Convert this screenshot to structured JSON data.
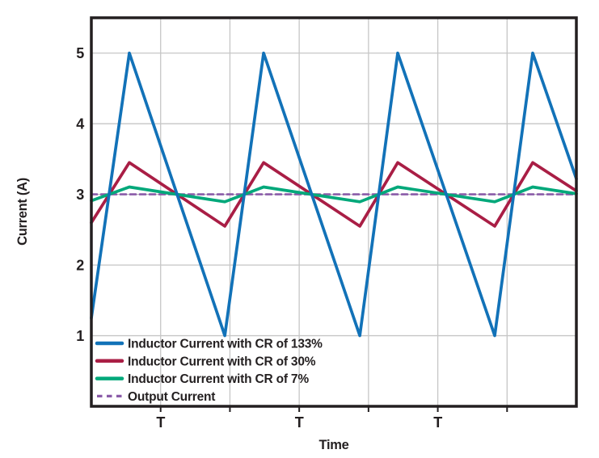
{
  "figure": {
    "background": "#ffffff",
    "border_color": "#231f20",
    "gridline_color": "#c6c6c6",
    "text_color": "#231f20"
  },
  "chart_data": {
    "type": "line",
    "title": "",
    "xlabel": "Time",
    "ylabel": "Current (A)",
    "x_unit": "switching period T",
    "x_range_T": [
      0,
      3.5
    ],
    "y_range": [
      0,
      5.5
    ],
    "y_ticks": [
      1,
      2,
      3,
      4,
      5
    ],
    "x_gridlines_T": [
      0.5,
      1.0,
      1.5,
      2.0,
      2.5,
      3.0
    ],
    "x_tick_labels": [
      {
        "t": 0.5,
        "label": "T"
      },
      {
        "t": 1.5,
        "label": "T"
      },
      {
        "t": 2.5,
        "label": "T"
      }
    ],
    "grid": true,
    "legend_position": "lower-left-inside",
    "output_current_A": 3,
    "series": [
      {
        "name": "Inductor Current with CR of 133%",
        "color": "#1272b8",
        "style": "solid",
        "points": [
          [
            0,
            1.25
          ],
          [
            0.274,
            5
          ],
          [
            0.963,
            1
          ],
          [
            1.243,
            5
          ],
          [
            1.937,
            1
          ],
          [
            2.211,
            5
          ],
          [
            2.911,
            1
          ],
          [
            3.185,
            5
          ],
          [
            3.5,
            3.22
          ]
        ]
      },
      {
        "name": "Inductor Current with CR of 30%",
        "color": "#a91e45",
        "style": "solid",
        "points": [
          [
            0,
            2.6
          ],
          [
            0.274,
            3.45
          ],
          [
            0.963,
            2.55
          ],
          [
            1.243,
            3.45
          ],
          [
            1.937,
            2.55
          ],
          [
            2.211,
            3.45
          ],
          [
            2.911,
            2.55
          ],
          [
            3.185,
            3.45
          ],
          [
            3.5,
            3.05
          ]
        ]
      },
      {
        "name": "Inductor Current with CR of 7%",
        "color": "#00a87a",
        "style": "solid",
        "points": [
          [
            0,
            2.91
          ],
          [
            0.274,
            3.105
          ],
          [
            0.963,
            2.895
          ],
          [
            1.243,
            3.105
          ],
          [
            1.937,
            2.895
          ],
          [
            2.211,
            3.105
          ],
          [
            2.911,
            2.895
          ],
          [
            3.185,
            3.105
          ],
          [
            3.5,
            3.01
          ]
        ]
      },
      {
        "name": "Output Current",
        "color": "#8a5ba8",
        "style": "dashed",
        "points": [
          [
            0,
            3
          ],
          [
            3.5,
            3
          ]
        ]
      }
    ]
  }
}
